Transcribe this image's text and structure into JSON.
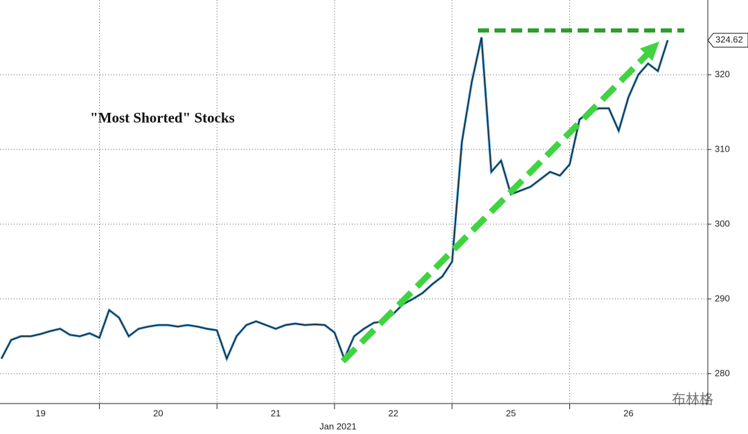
{
  "chart_data": {
    "type": "line",
    "title": "\"Most Shorted\" Stocks",
    "categories": [
      null,
      null,
      null,
      null,
      "19",
      null,
      null,
      null,
      null,
      null,
      null,
      null,
      null,
      null,
      null,
      null,
      "20",
      null,
      null,
      null,
      null,
      null,
      null,
      null,
      null,
      null,
      null,
      null,
      "21",
      null,
      null,
      null,
      null,
      null,
      null,
      null,
      null,
      null,
      null,
      null,
      "22",
      null,
      null,
      null,
      null,
      null,
      null,
      null,
      null,
      null,
      null,
      null,
      "25",
      null,
      null,
      null,
      null,
      null,
      null,
      null,
      null,
      null,
      null,
      null,
      "26",
      null,
      null,
      null,
      null
    ],
    "x_axis_sublabel": "Jan 2021",
    "series": [
      {
        "name": "Most Shorted",
        "color": "#1a1a1a",
        "values": [
          282,
          284.5,
          285,
          285,
          285.3,
          285.7,
          286,
          285.2,
          285,
          285.4,
          284.8,
          288.5,
          287.5,
          285,
          286,
          286.3,
          286.5,
          286.5,
          286.3,
          286.5,
          286.3,
          286,
          285.8,
          282,
          285,
          286.5,
          287,
          286.5,
          286,
          286.5,
          286.7,
          286.5,
          286.6,
          286.5,
          285.5,
          282,
          285,
          286,
          286.8,
          287,
          288,
          289.3,
          290,
          290.8,
          292,
          293,
          295,
          311,
          319,
          325,
          307,
          308.5,
          304,
          304.5,
          305,
          306,
          307,
          306.5,
          308,
          314,
          315,
          315.5,
          315.5,
          312.5,
          317,
          320,
          321.5,
          320.5,
          324.62
        ]
      }
    ],
    "ylim": [
      276,
      330
    ],
    "yticks": [
      280,
      290,
      300,
      310,
      320
    ],
    "grid": true,
    "watermark": "布林格"
  }
}
